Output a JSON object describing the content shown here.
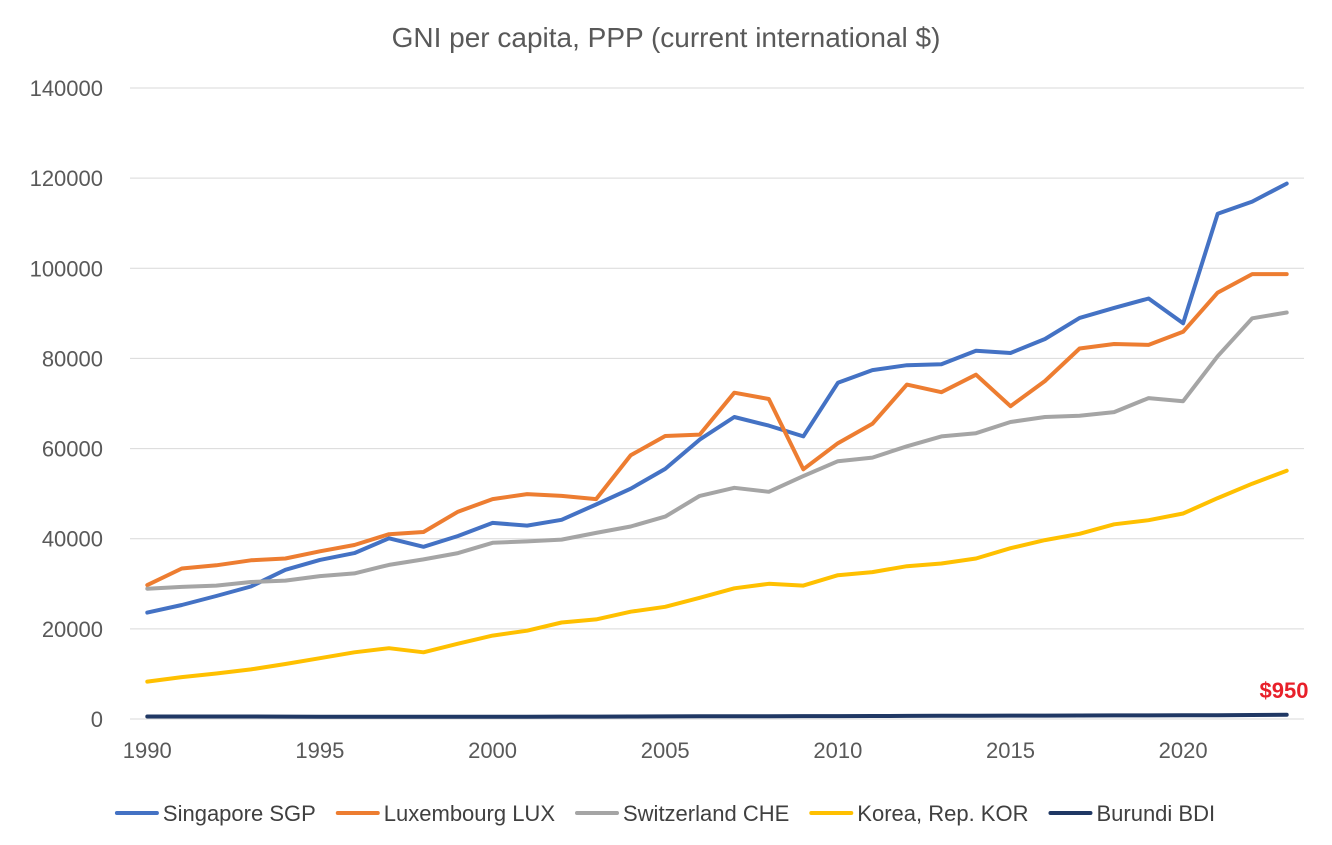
{
  "chart_data": {
    "type": "line",
    "title": "GNI per capita, PPP (current international $)",
    "xlabel": "",
    "ylabel": "",
    "xlim": [
      1990,
      2023
    ],
    "ylim": [
      0,
      140000
    ],
    "x_ticks": [
      1990,
      1995,
      2000,
      2005,
      2010,
      2015,
      2020
    ],
    "y_ticks": [
      0,
      20000,
      40000,
      60000,
      80000,
      100000,
      120000,
      140000
    ],
    "grid": true,
    "legend_position": "bottom",
    "x": [
      1990,
      1991,
      1992,
      1993,
      1994,
      1995,
      1996,
      1997,
      1998,
      1999,
      2000,
      2001,
      2002,
      2003,
      2004,
      2005,
      2006,
      2007,
      2008,
      2009,
      2010,
      2011,
      2012,
      2013,
      2014,
      2015,
      2016,
      2017,
      2018,
      2019,
      2020,
      2021,
      2022,
      2023
    ],
    "series": [
      {
        "name": "Singapore SGP",
        "color": "#4472c4",
        "values": [
          23600,
          25300,
          27300,
          29400,
          33100,
          35300,
          36800,
          40100,
          38200,
          40600,
          43500,
          42900,
          44200,
          47600,
          51100,
          55500,
          62000,
          67000,
          65100,
          62700,
          74600,
          77400,
          78500,
          78700,
          81700,
          81200,
          84300,
          89000,
          91200,
          93300,
          87800,
          112100,
          114800,
          118800
        ]
      },
      {
        "name": "Luxembourg LUX",
        "color": "#ed7d31",
        "values": [
          29700,
          33400,
          34100,
          35200,
          35600,
          37200,
          38600,
          41000,
          41500,
          46000,
          48800,
          49900,
          49500,
          48800,
          58500,
          62800,
          63100,
          72400,
          71000,
          55400,
          61200,
          65500,
          74200,
          72500,
          76400,
          69400,
          75000,
          82200,
          83200,
          83000,
          85900,
          94600,
          98700,
          98700
        ]
      },
      {
        "name": "Switzerland CHE",
        "color": "#a5a5a5",
        "values": [
          28900,
          29300,
          29600,
          30400,
          30700,
          31700,
          32300,
          34200,
          35400,
          36800,
          39100,
          39400,
          39800,
          41300,
          42700,
          44900,
          49500,
          51300,
          50400,
          53900,
          57200,
          58000,
          60500,
          62700,
          63400,
          65900,
          67000,
          67300,
          68100,
          71200,
          70500,
          80500,
          88900,
          90200
        ]
      },
      {
        "name": "Korea, Rep. KOR",
        "color": "#ffc000",
        "values": [
          8300,
          9300,
          10100,
          11000,
          12200,
          13500,
          14800,
          15700,
          14800,
          16700,
          18500,
          19600,
          21400,
          22100,
          23800,
          24900,
          26900,
          29000,
          30000,
          29600,
          31900,
          32600,
          33900,
          34500,
          35600,
          37900,
          39700,
          41100,
          43200,
          44100,
          45600,
          49000,
          52200,
          55100
        ]
      },
      {
        "name": "Burundi BDI",
        "color": "#203864",
        "values": [
          550,
          560,
          560,
          550,
          540,
          520,
          510,
          510,
          510,
          510,
          520,
          520,
          530,
          540,
          560,
          570,
          590,
          610,
          630,
          640,
          650,
          660,
          680,
          720,
          740,
          750,
          760,
          770,
          790,
          800,
          810,
          830,
          890,
          950
        ]
      }
    ],
    "annotations": [
      {
        "text": "$950",
        "x": 2023,
        "y": 950,
        "color": "#e8202a"
      }
    ]
  }
}
